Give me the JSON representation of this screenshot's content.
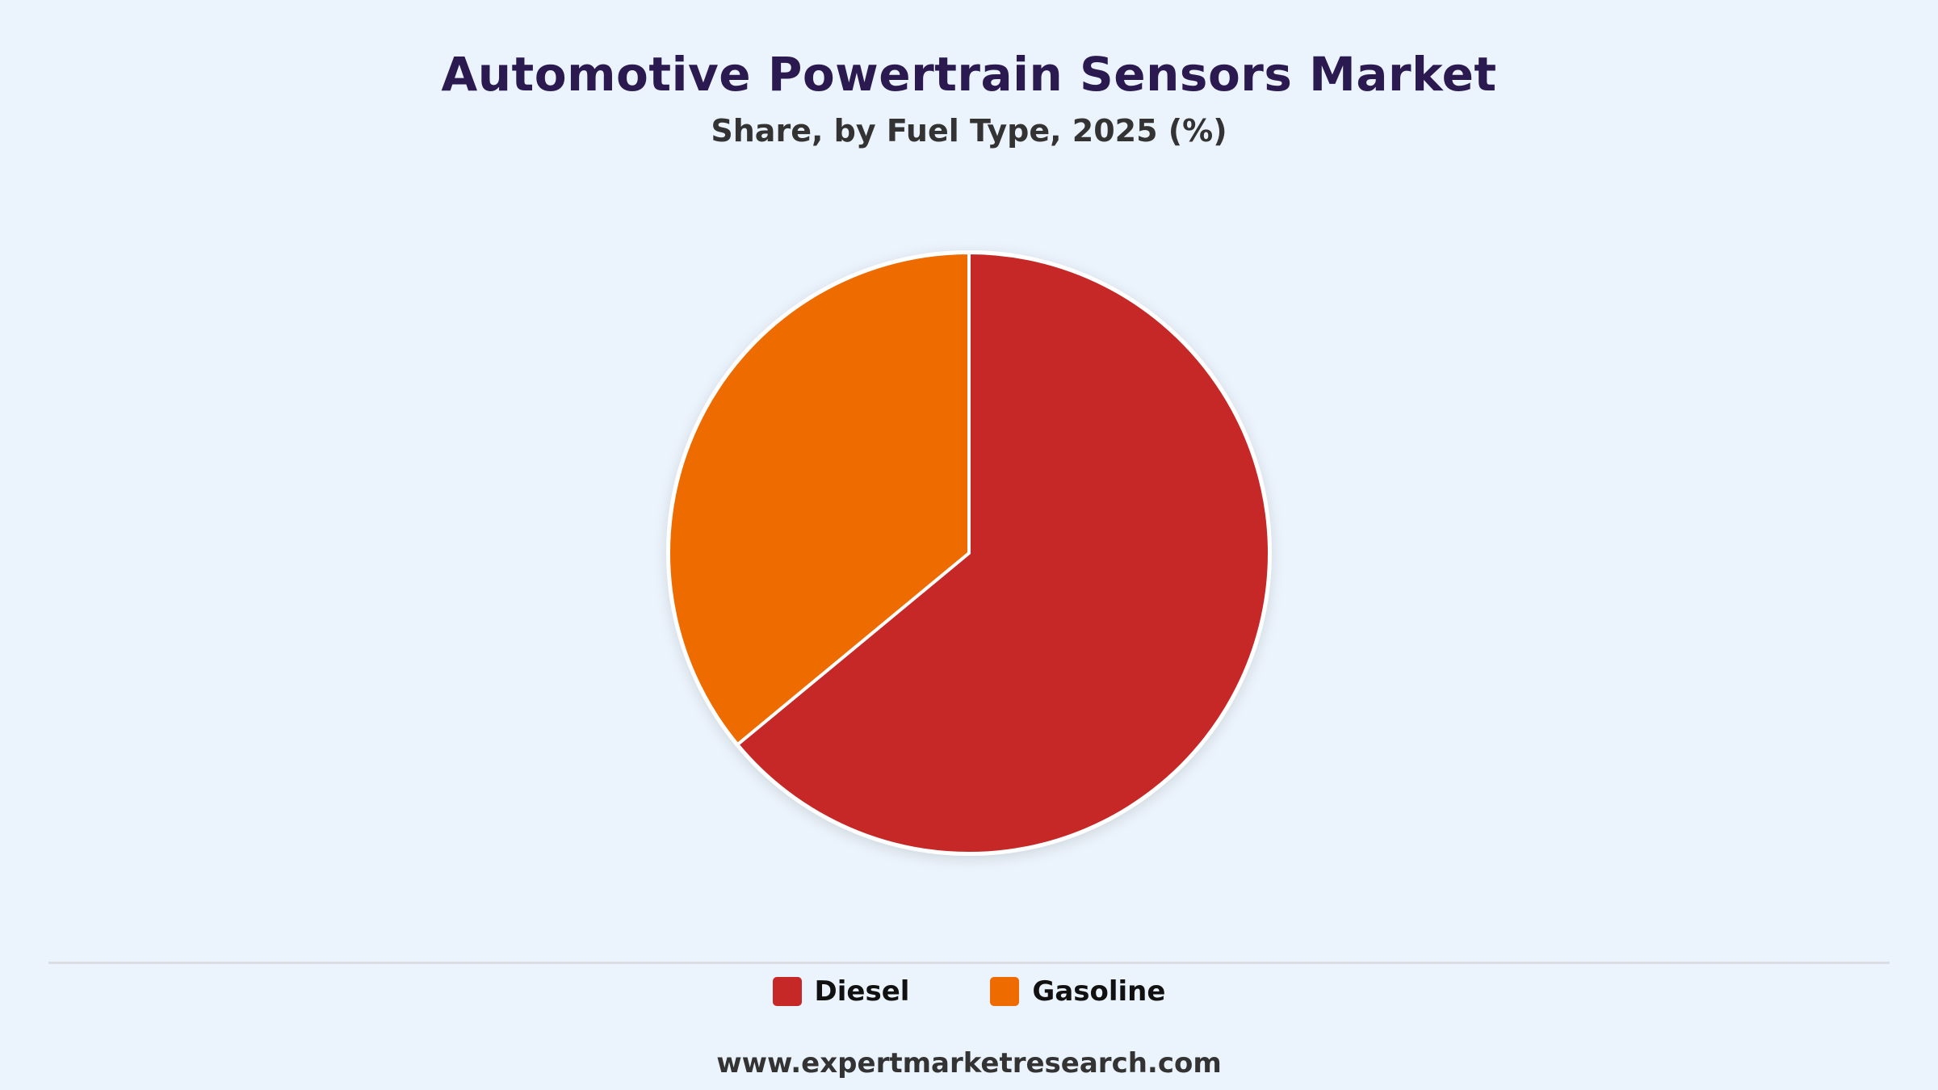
{
  "chart_data": {
    "type": "pie",
    "title": "Automotive Powertrain Sensors Market",
    "subtitle": "Share, by Fuel Type, 2025 (%)",
    "categories": [
      "Diesel",
      "Gasoline"
    ],
    "values": [
      64,
      36
    ],
    "colors": [
      "#c62828",
      "#ee6b00"
    ],
    "legend_position": "bottom"
  },
  "legend": {
    "items": [
      {
        "label": "Diesel",
        "color": "#c62828"
      },
      {
        "label": "Gasoline",
        "color": "#ee6b00"
      }
    ]
  },
  "footer": {
    "source": "www.expertmarketresearch.com"
  }
}
